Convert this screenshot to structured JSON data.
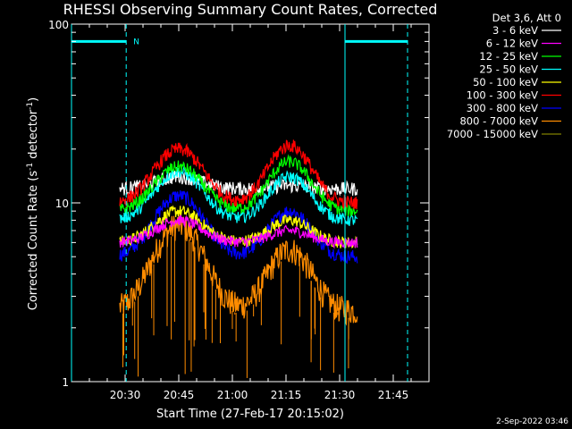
{
  "chart_data": {
    "type": "line",
    "title": "RHESSI Observing Summary Count Rates, Corrected",
    "xlabel": "Start Time (27-Feb-17 20:15:02)",
    "ylabel_main": "Corrected Count Rate (s",
    "ylabel_sup1": "-1",
    "ylabel_mid": " detector",
    "ylabel_sup2": "-1",
    "ylabel_end": ")",
    "x_axis": {
      "min_minutes": 0,
      "max_minutes": 100,
      "start": "20:15:02",
      "ticks": [
        {
          "label": "20:30",
          "t": 15
        },
        {
          "label": "20:45",
          "t": 30
        },
        {
          "label": "21:00",
          "t": 45
        },
        {
          "label": "21:15",
          "t": 60
        },
        {
          "label": "21:30",
          "t": 75
        },
        {
          "label": "21:45",
          "t": 90
        }
      ]
    },
    "y_axis": {
      "scale": "log",
      "min": 1,
      "max": 100,
      "ticks": [
        {
          "label": "1",
          "v": 1
        },
        {
          "label": "10",
          "v": 10
        },
        {
          "label": "100",
          "v": 100
        }
      ]
    },
    "legend_title": "Det 3,6, Att 0",
    "legend_position": "top-right",
    "series": [
      {
        "name": "3 - 6 keV",
        "color": "#ffffff",
        "level": 1.3,
        "noise": 0.09,
        "base": 12,
        "peak": 14,
        "peak2": 12.5
      },
      {
        "name": "6 - 12 keV",
        "color": "#ff00ff",
        "level": 0.72,
        "noise": 0.07,
        "base": 6,
        "peak": 8,
        "peak2": 7
      },
      {
        "name": "12 - 25 keV",
        "color": "#00ff00",
        "level": 1.2,
        "noise": 0.08,
        "base": 9,
        "peak": 16,
        "peak2": 17
      },
      {
        "name": "25 - 50 keV",
        "color": "#00ffff",
        "level": 1.1,
        "noise": 0.08,
        "base": 8,
        "peak": 15,
        "peak2": 14
      },
      {
        "name": "50 - 100 keV",
        "color": "#ffff00",
        "level": 0.82,
        "noise": 0.08,
        "base": 6,
        "peak": 9,
        "peak2": 8
      },
      {
        "name": "100 - 300 keV",
        "color": "#ff0000",
        "level": 1.45,
        "noise": 0.09,
        "base": 10,
        "peak": 20,
        "peak2": 21
      },
      {
        "name": "300 - 800 keV",
        "color": "#0000ff",
        "level": 0.95,
        "noise": 0.09,
        "base": 5,
        "peak": 11,
        "peak2": 9
      },
      {
        "name": "800 - 7000 keV",
        "color": "#ff8c00",
        "level": 0.6,
        "noise": 0.18,
        "base": 2.5,
        "peak": 7.5,
        "peak2": 5.5
      },
      {
        "name": "7000 - 15000 keV",
        "color": "#808000",
        "level": 0.5,
        "noise": 0.05,
        "base": 6,
        "peak": 7,
        "peak2": 6
      }
    ],
    "data_window_minutes": [
      13.5,
      80
    ],
    "gaps": [
      {
        "label": "N",
        "start": 0,
        "end": 15.3,
        "value": 80
      },
      {
        "label": "",
        "start": 76.5,
        "end": 94,
        "value": 80
      }
    ],
    "vertical_lines": [
      {
        "t": 0,
        "style": "solid",
        "color": "#00ffff"
      },
      {
        "t": 15.3,
        "style": "dashed",
        "color": "#00ffff"
      },
      {
        "t": 76.5,
        "style": "solid",
        "color": "#00ffff"
      },
      {
        "t": 94,
        "style": "dashed",
        "color": "#00ffff"
      }
    ]
  },
  "footer": {
    "date": "2-Sep-2022 03:46"
  }
}
